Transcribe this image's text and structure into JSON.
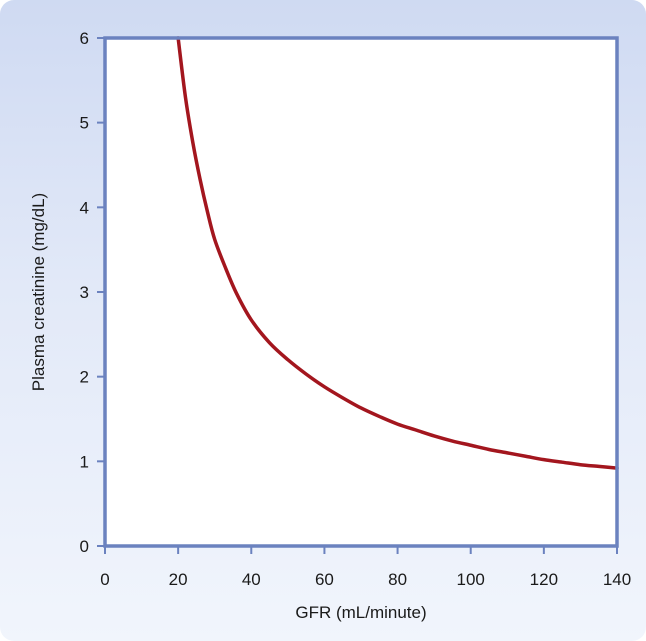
{
  "colors": {
    "background_top": "#cfdaf2",
    "background_bottom": "#f1f5fc",
    "plot_fill": "#ffffff",
    "axis": "#6b82bf",
    "curve": "#a3161e"
  },
  "chart_data": {
    "type": "line",
    "title": "",
    "xlabel": "GFR (mL/minute)",
    "ylabel": "Plasma creatinine (mg/dL)",
    "xlim": [
      0,
      140
    ],
    "ylim": [
      0,
      6
    ],
    "xticks": [
      0,
      20,
      40,
      60,
      80,
      100,
      120,
      140
    ],
    "yticks": [
      0,
      1,
      2,
      3,
      4,
      5,
      6
    ],
    "grid": false,
    "legend": "none",
    "series": [
      {
        "x": [
          20,
          22,
          24,
          26,
          28,
          30,
          33,
          36,
          40,
          45,
          50,
          55,
          60,
          65,
          70,
          75,
          80,
          85,
          90,
          95,
          100,
          105,
          110,
          115,
          120,
          125,
          130,
          135,
          140
        ],
        "y": [
          6.0,
          5.3,
          4.77,
          4.33,
          3.95,
          3.62,
          3.28,
          2.98,
          2.67,
          2.4,
          2.2,
          2.03,
          1.88,
          1.75,
          1.63,
          1.53,
          1.44,
          1.37,
          1.3,
          1.24,
          1.19,
          1.14,
          1.1,
          1.06,
          1.02,
          0.99,
          0.96,
          0.94,
          0.92
        ]
      }
    ]
  }
}
